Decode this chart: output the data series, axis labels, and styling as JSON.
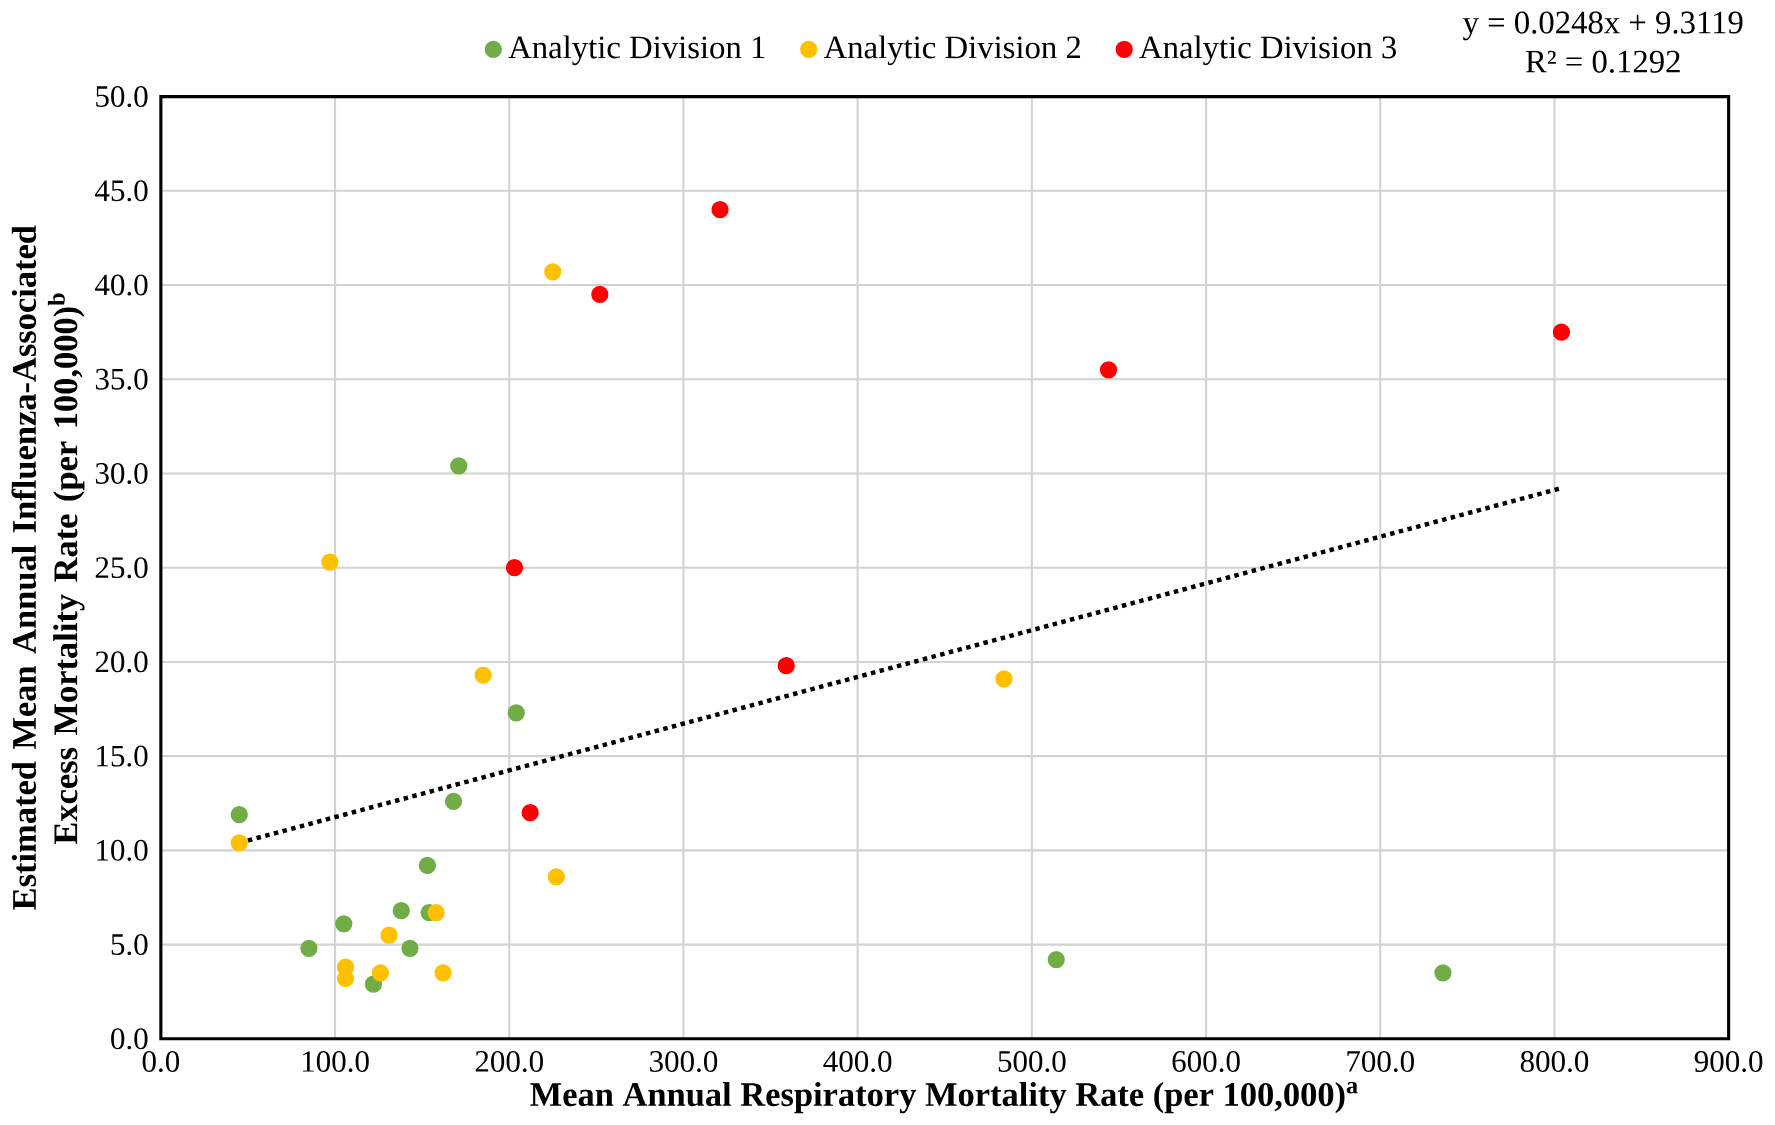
{
  "chart_data": {
    "type": "scatter",
    "xlabel": "Mean Annual Respiratory Mortality Rate (per 100,000)$^{a}$",
    "ylabel": "Estimated Mean Annual Influenza-Associated Excess Mortality Rate (per 100,000)$^{b}$",
    "annotations": [
      "y = 0.0248x + 9.3119",
      "R² = 0.1292"
    ],
    "xlim": [
      0,
      900
    ],
    "ylim": [
      0,
      50
    ],
    "xticks": [
      {
        "value": 0,
        "label": "0.0"
      },
      {
        "value": 100,
        "label": "100.0"
      },
      {
        "value": 200,
        "label": "200.0"
      },
      {
        "value": 300,
        "label": "300.0"
      },
      {
        "value": 400,
        "label": "400.0"
      },
      {
        "value": 500,
        "label": "500.0"
      },
      {
        "value": 600,
        "label": "600.0"
      },
      {
        "value": 700,
        "label": "700.0"
      },
      {
        "value": 800,
        "label": "800.0"
      },
      {
        "value": 900,
        "label": "900.0"
      }
    ],
    "yticks": [
      {
        "value": 0,
        "label": "0.0"
      },
      {
        "value": 5,
        "label": "5.0"
      },
      {
        "value": 10,
        "label": "10.0"
      },
      {
        "value": 15,
        "label": "15.0"
      },
      {
        "value": 20,
        "label": "20.0"
      },
      {
        "value": 25,
        "label": "25.0"
      },
      {
        "value": 30,
        "label": "30.0"
      },
      {
        "value": 35,
        "label": "35.0"
      },
      {
        "value": 40,
        "label": "40.0"
      },
      {
        "value": 45,
        "label": "45.0"
      },
      {
        "value": 50,
        "label": "50.0"
      }
    ],
    "grid": true,
    "legend": "top",
    "marker": "circle",
    "series": [
      {
        "name": "Analytic Division 1",
        "color": "#70ad47",
        "x": [
          45,
          85,
          105,
          122,
          138,
          143,
          153,
          154,
          168,
          171,
          204,
          514,
          736
        ],
        "values": [
          11.9,
          4.8,
          6.1,
          2.9,
          6.8,
          4.8,
          9.2,
          6.7,
          12.6,
          30.4,
          17.3,
          4.2,
          3.5
        ]
      },
      {
        "name": "Analytic Division 2",
        "color": "#ffc000",
        "x": [
          45,
          97,
          106,
          106,
          126,
          131,
          158,
          162,
          185,
          225,
          227,
          484
        ],
        "values": [
          10.4,
          25.3,
          3.8,
          3.2,
          3.5,
          5.5,
          6.7,
          3.5,
          19.3,
          40.7,
          8.6,
          19.1
        ]
      },
      {
        "name": "Analytic Division 3",
        "color": "#ff0000",
        "x": [
          321,
          252,
          804,
          544,
          203,
          359,
          212
        ],
        "values": [
          44.0,
          39.5,
          37.5,
          35.5,
          25.0,
          19.8,
          12.0
        ]
      },
      {
        "type": "line",
        "color": "#000000",
        "line_style": "dotted",
        "marker": "none",
        "x": [
          45,
          803
        ],
        "values": [
          10.4,
          29.2
        ]
      }
    ]
  }
}
